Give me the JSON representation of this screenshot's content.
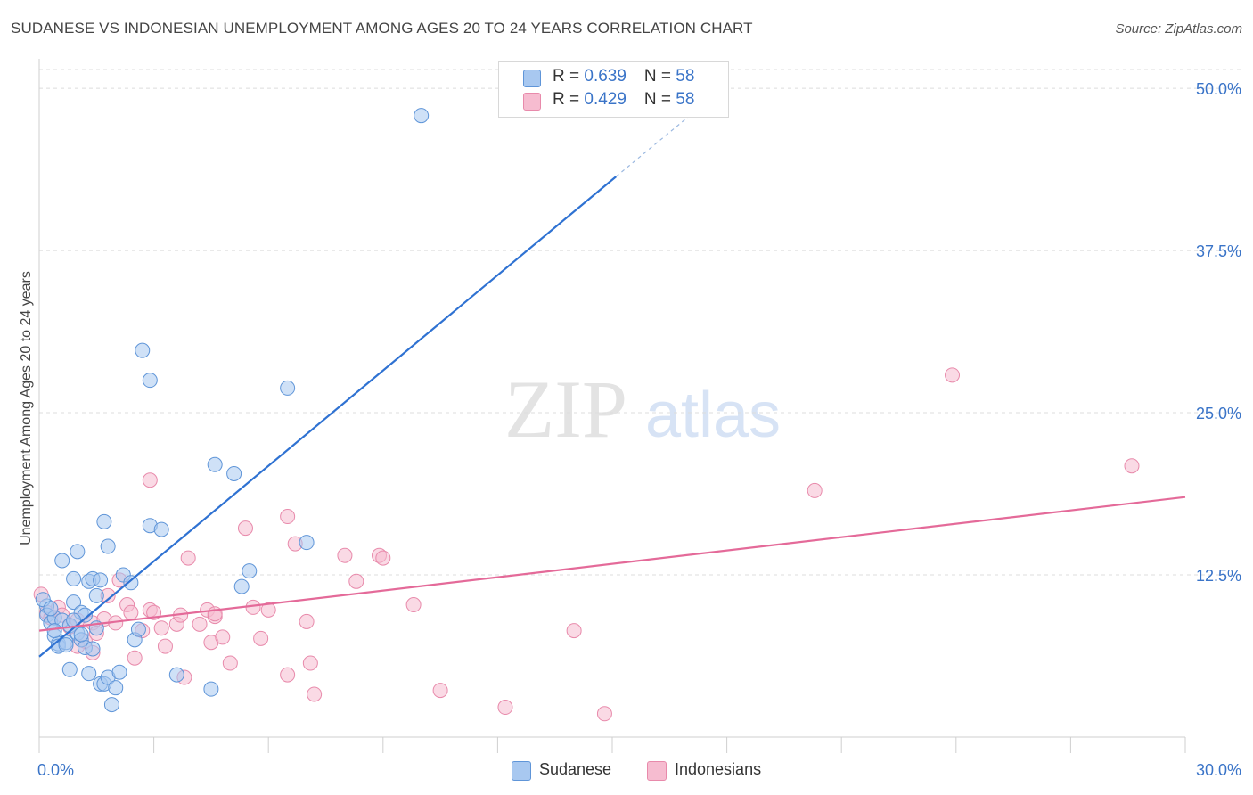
{
  "title": "SUDANESE VS INDONESIAN UNEMPLOYMENT AMONG AGES 20 TO 24 YEARS CORRELATION CHART",
  "source": "Source: ZipAtlas.com",
  "watermark": {
    "zip": "ZIP",
    "atlas": "atlas"
  },
  "legend": {
    "sudanese": {
      "r_label": "R = ",
      "r_value": "0.639",
      "n_label": "N = ",
      "n_value": "58"
    },
    "indonesian": {
      "r_label": "R = ",
      "r_value": "0.429",
      "n_label": "N = ",
      "n_value": "58"
    }
  },
  "bottom_legend": {
    "sudanese": "Sudanese",
    "indonesian": "Indonesians"
  },
  "colors": {
    "sudanese_fill": "#a8c8f0",
    "sudanese_stroke": "#5f95d8",
    "sudanese_line": "#2f72d2",
    "indonesian_fill": "#f6bcd0",
    "indonesian_stroke": "#e88aab",
    "indonesian_line": "#e46a99",
    "tick_label": "#3a74c8",
    "grid": "#dcdcdc"
  },
  "chart_data": {
    "type": "scatter",
    "title": "SUDANESE VS INDONESIAN UNEMPLOYMENT AMONG AGES 20 TO 24 YEARS CORRELATION CHART",
    "xlabel": "",
    "ylabel": "Unemployment Among Ages 20 to 24 years",
    "xlim": [
      0,
      30
    ],
    "ylim": [
      0,
      52
    ],
    "x_tick_labels": [
      "0.0%",
      "30.0%"
    ],
    "y_ticks": [
      12.5,
      25.0,
      37.5,
      50.0
    ],
    "y_tick_labels": [
      "12.5%",
      "25.0%",
      "37.5%",
      "50.0%"
    ],
    "grid": true,
    "legend_position": "top-center",
    "series": [
      {
        "name": "Sudanese",
        "R": 0.639,
        "N": 58,
        "trend": {
          "x": [
            0,
            15.1
          ],
          "y": [
            6.2,
            43.2
          ],
          "dashed_to": [
            17.4,
            48.8
          ]
        },
        "points": [
          [
            0.2,
            10.1
          ],
          [
            0.2,
            9.4
          ],
          [
            0.3,
            8.8
          ],
          [
            0.4,
            9.2
          ],
          [
            0.4,
            7.8
          ],
          [
            0.5,
            7.2
          ],
          [
            0.5,
            7.0
          ],
          [
            0.6,
            9.0
          ],
          [
            0.6,
            13.6
          ],
          [
            0.7,
            7.3
          ],
          [
            0.7,
            7.1
          ],
          [
            0.8,
            8.6
          ],
          [
            0.8,
            5.2
          ],
          [
            0.9,
            10.4
          ],
          [
            0.9,
            12.2
          ],
          [
            1.0,
            14.3
          ],
          [
            1.0,
            8.0
          ],
          [
            1.1,
            7.5
          ],
          [
            1.1,
            9.6
          ],
          [
            1.2,
            9.4
          ],
          [
            1.2,
            6.9
          ],
          [
            1.3,
            4.9
          ],
          [
            1.3,
            12.0
          ],
          [
            1.4,
            6.8
          ],
          [
            1.4,
            12.2
          ],
          [
            1.5,
            10.9
          ],
          [
            1.5,
            8.4
          ],
          [
            1.6,
            4.1
          ],
          [
            1.7,
            16.6
          ],
          [
            1.7,
            4.1
          ],
          [
            1.8,
            4.6
          ],
          [
            1.8,
            14.7
          ],
          [
            1.9,
            2.5
          ],
          [
            2.0,
            3.8
          ],
          [
            2.1,
            5.0
          ],
          [
            2.2,
            12.5
          ],
          [
            2.4,
            11.9
          ],
          [
            2.5,
            7.5
          ],
          [
            2.7,
            29.8
          ],
          [
            2.9,
            16.3
          ],
          [
            2.9,
            27.5
          ],
          [
            3.2,
            16.0
          ],
          [
            3.6,
            4.8
          ],
          [
            4.5,
            3.7
          ],
          [
            4.6,
            21.0
          ],
          [
            5.1,
            20.3
          ],
          [
            5.3,
            11.6
          ],
          [
            5.5,
            12.8
          ],
          [
            6.5,
            26.9
          ],
          [
            7.0,
            15.0
          ],
          [
            10.0,
            47.9
          ],
          [
            0.1,
            10.6
          ],
          [
            0.3,
            9.9
          ],
          [
            1.6,
            12.1
          ],
          [
            2.6,
            8.3
          ],
          [
            0.9,
            9.0
          ],
          [
            0.4,
            8.2
          ],
          [
            1.1,
            7.9
          ]
        ]
      },
      {
        "name": "Indonesians",
        "R": 0.429,
        "N": 58,
        "trend": {
          "x": [
            0,
            30
          ],
          "y": [
            8.2,
            18.5
          ]
        },
        "points": [
          [
            0.05,
            11.0
          ],
          [
            0.2,
            9.6
          ],
          [
            0.3,
            9.2
          ],
          [
            0.5,
            10.0
          ],
          [
            0.6,
            9.4
          ],
          [
            0.8,
            8.5
          ],
          [
            1.0,
            9.0
          ],
          [
            1.0,
            7.0
          ],
          [
            1.2,
            7.4
          ],
          [
            1.4,
            6.5
          ],
          [
            1.4,
            8.8
          ],
          [
            1.5,
            8.0
          ],
          [
            1.7,
            9.1
          ],
          [
            1.8,
            10.9
          ],
          [
            2.0,
            8.8
          ],
          [
            2.1,
            12.1
          ],
          [
            2.3,
            10.2
          ],
          [
            2.4,
            9.6
          ],
          [
            2.5,
            6.1
          ],
          [
            2.7,
            8.2
          ],
          [
            2.9,
            9.8
          ],
          [
            2.9,
            19.8
          ],
          [
            3.0,
            9.6
          ],
          [
            3.2,
            8.4
          ],
          [
            3.3,
            7.0
          ],
          [
            3.6,
            8.7
          ],
          [
            3.7,
            9.4
          ],
          [
            3.8,
            4.6
          ],
          [
            3.9,
            13.8
          ],
          [
            4.2,
            8.7
          ],
          [
            4.4,
            9.8
          ],
          [
            4.5,
            7.3
          ],
          [
            4.6,
            9.3
          ],
          [
            4.6,
            9.5
          ],
          [
            4.8,
            7.7
          ],
          [
            5.0,
            5.7
          ],
          [
            5.4,
            16.1
          ],
          [
            5.6,
            10.0
          ],
          [
            5.8,
            7.6
          ],
          [
            6.0,
            9.8
          ],
          [
            6.5,
            4.8
          ],
          [
            6.5,
            17.0
          ],
          [
            6.7,
            14.9
          ],
          [
            7.0,
            8.9
          ],
          [
            7.1,
            5.7
          ],
          [
            7.2,
            3.3
          ],
          [
            8.0,
            14.0
          ],
          [
            8.3,
            12.0
          ],
          [
            8.9,
            14.0
          ],
          [
            9.0,
            13.8
          ],
          [
            9.8,
            10.2
          ],
          [
            10.5,
            3.6
          ],
          [
            12.2,
            2.3
          ],
          [
            14.0,
            8.2
          ],
          [
            14.8,
            1.8
          ],
          [
            20.3,
            19.0
          ],
          [
            23.9,
            27.9
          ],
          [
            28.6,
            20.9
          ]
        ]
      }
    ]
  }
}
